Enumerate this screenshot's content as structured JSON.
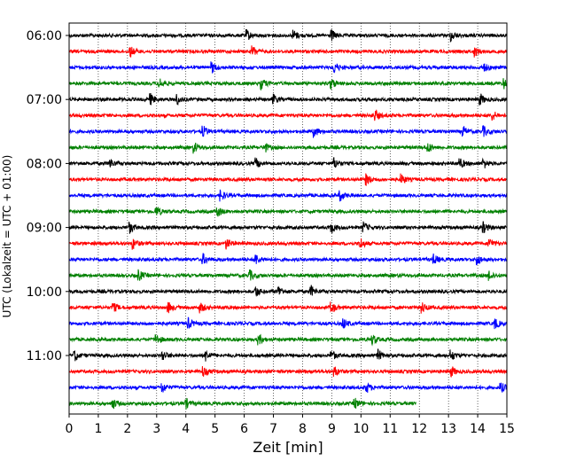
{
  "chart_data": {
    "type": "line",
    "title": "",
    "xlabel": "Zeit  [min]",
    "ylabel": "UTC (Lokalzeit = UTC + 01:00)",
    "xlim": [
      0,
      15
    ],
    "x_ticks": [
      "0",
      "1",
      "2",
      "3",
      "4",
      "5",
      "6",
      "7",
      "8",
      "9",
      "10",
      "11",
      "12",
      "13",
      "14",
      "15"
    ],
    "y_tick_labels": [
      "06:00",
      "07:00",
      "08:00",
      "09:00",
      "10:00",
      "11:00"
    ],
    "grid": "vertical dotted lines at each minute",
    "row_interval_minutes": 15,
    "row_color_cycle": [
      "#000000",
      "#ff0000",
      "#0000ff",
      "#008000"
    ],
    "rows": [
      {
        "start": "06:00",
        "end_min": 15,
        "events": [
          6.1,
          7.7,
          9.0,
          13.1
        ]
      },
      {
        "start": "06:15",
        "end_min": 15,
        "events": [
          2.1,
          6.3,
          13.9
        ]
      },
      {
        "start": "06:30",
        "end_min": 15,
        "events": [
          4.9,
          9.1,
          14.2
        ]
      },
      {
        "start": "06:45",
        "end_min": 15,
        "events": [
          3.1,
          6.6,
          9.0,
          14.9
        ]
      },
      {
        "start": "07:00",
        "end_min": 15,
        "events": [
          2.8,
          3.7,
          7.0,
          14.1
        ]
      },
      {
        "start": "07:15",
        "end_min": 15,
        "events": [
          10.5,
          14.5
        ]
      },
      {
        "start": "07:30",
        "end_min": 15,
        "events": [
          4.6,
          8.4,
          13.5,
          14.2
        ]
      },
      {
        "start": "07:45",
        "end_min": 15,
        "events": [
          4.3,
          6.7,
          12.3
        ]
      },
      {
        "start": "08:00",
        "end_min": 15,
        "events": [
          1.4,
          6.4,
          9.1,
          13.4,
          14.2
        ]
      },
      {
        "start": "08:15",
        "end_min": 15,
        "events": [
          10.2,
          11.4
        ]
      },
      {
        "start": "08:30",
        "end_min": 15,
        "events": [
          5.2,
          9.3
        ]
      },
      {
        "start": "08:45",
        "end_min": 15,
        "events": [
          3.0,
          5.1
        ]
      },
      {
        "start": "09:00",
        "end_min": 15,
        "events": [
          2.1,
          9.0,
          10.1,
          14.2
        ]
      },
      {
        "start": "09:15",
        "end_min": 15,
        "events": [
          2.2,
          5.4,
          10.0,
          14.4
        ]
      },
      {
        "start": "09:30",
        "end_min": 15,
        "events": [
          4.6,
          6.4,
          12.5,
          14.0
        ]
      },
      {
        "start": "09:45",
        "end_min": 15,
        "events": [
          2.4,
          6.2,
          14.4
        ]
      },
      {
        "start": "10:00",
        "end_min": 15,
        "events": [
          6.4,
          7.2,
          8.3
        ]
      },
      {
        "start": "10:15",
        "end_min": 15,
        "events": [
          1.5,
          3.4,
          4.5,
          9.0,
          12.1
        ]
      },
      {
        "start": "10:30",
        "end_min": 15,
        "events": [
          4.1,
          9.4,
          14.6
        ]
      },
      {
        "start": "10:45",
        "end_min": 15,
        "events": [
          3.0,
          6.5,
          10.4
        ]
      },
      {
        "start": "11:00",
        "end_min": 15,
        "events": [
          0.2,
          3.2,
          4.7,
          9.0,
          10.6,
          13.1
        ]
      },
      {
        "start": "11:15",
        "end_min": 15,
        "events": [
          4.6,
          9.1,
          13.1
        ]
      },
      {
        "start": "11:30",
        "end_min": 15,
        "events": [
          3.2,
          10.2,
          14.8
        ]
      },
      {
        "start": "11:45",
        "end_min": 11.9,
        "events": [
          1.5,
          4.0,
          9.8
        ]
      }
    ]
  }
}
